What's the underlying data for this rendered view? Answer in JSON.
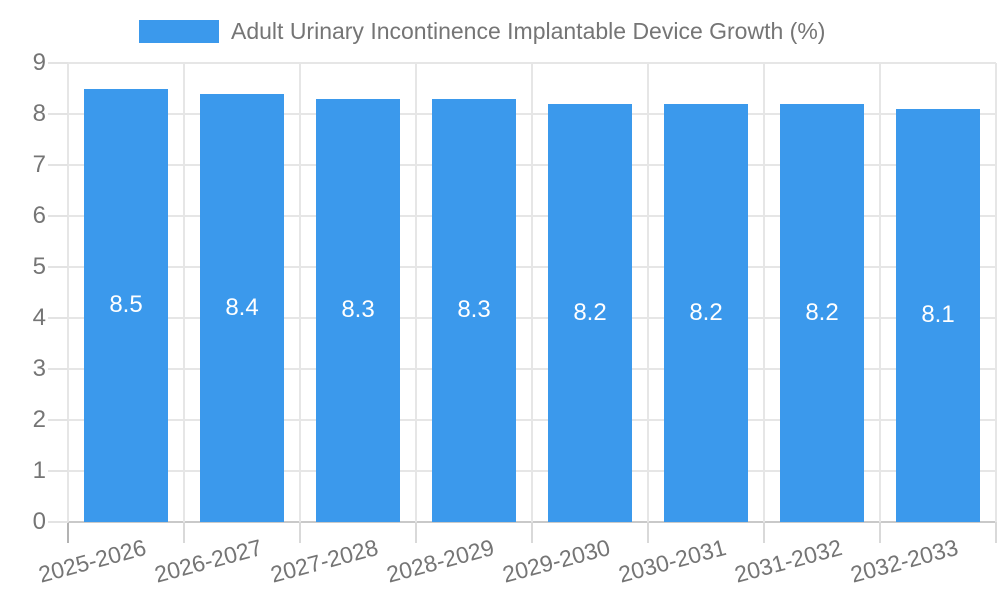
{
  "chart_data": {
    "type": "bar",
    "title": "Adult Urinary Incontinence Implantable Device Growth (%)",
    "categories": [
      "2025-2026",
      "2026-2027",
      "2027-2028",
      "2028-2029",
      "2029-2030",
      "2030-2031",
      "2031-2032",
      "2032-2033"
    ],
    "values": [
      8.5,
      8.4,
      8.3,
      8.3,
      8.2,
      8.2,
      8.2,
      8.1
    ],
    "bar_labels": [
      "8.5",
      "8.4",
      "8.3",
      "8.3",
      "8.2",
      "8.2",
      "8.2",
      "8.1"
    ],
    "xlabel": "",
    "ylabel": "",
    "ylim": [
      0,
      9
    ],
    "ytick_step": 1,
    "ytick_labels": [
      "0",
      "1",
      "2",
      "3",
      "4",
      "5",
      "6",
      "7",
      "8",
      "9"
    ],
    "grid": true,
    "legend_position": "top-center",
    "bar_color": "#3b99ec",
    "bar_label_color": "#ffffff",
    "tick_label_color": "#757575",
    "title_color": "#757575",
    "grid_color": "#e6e6e6",
    "axis_line_color": "#b3b3b3"
  }
}
